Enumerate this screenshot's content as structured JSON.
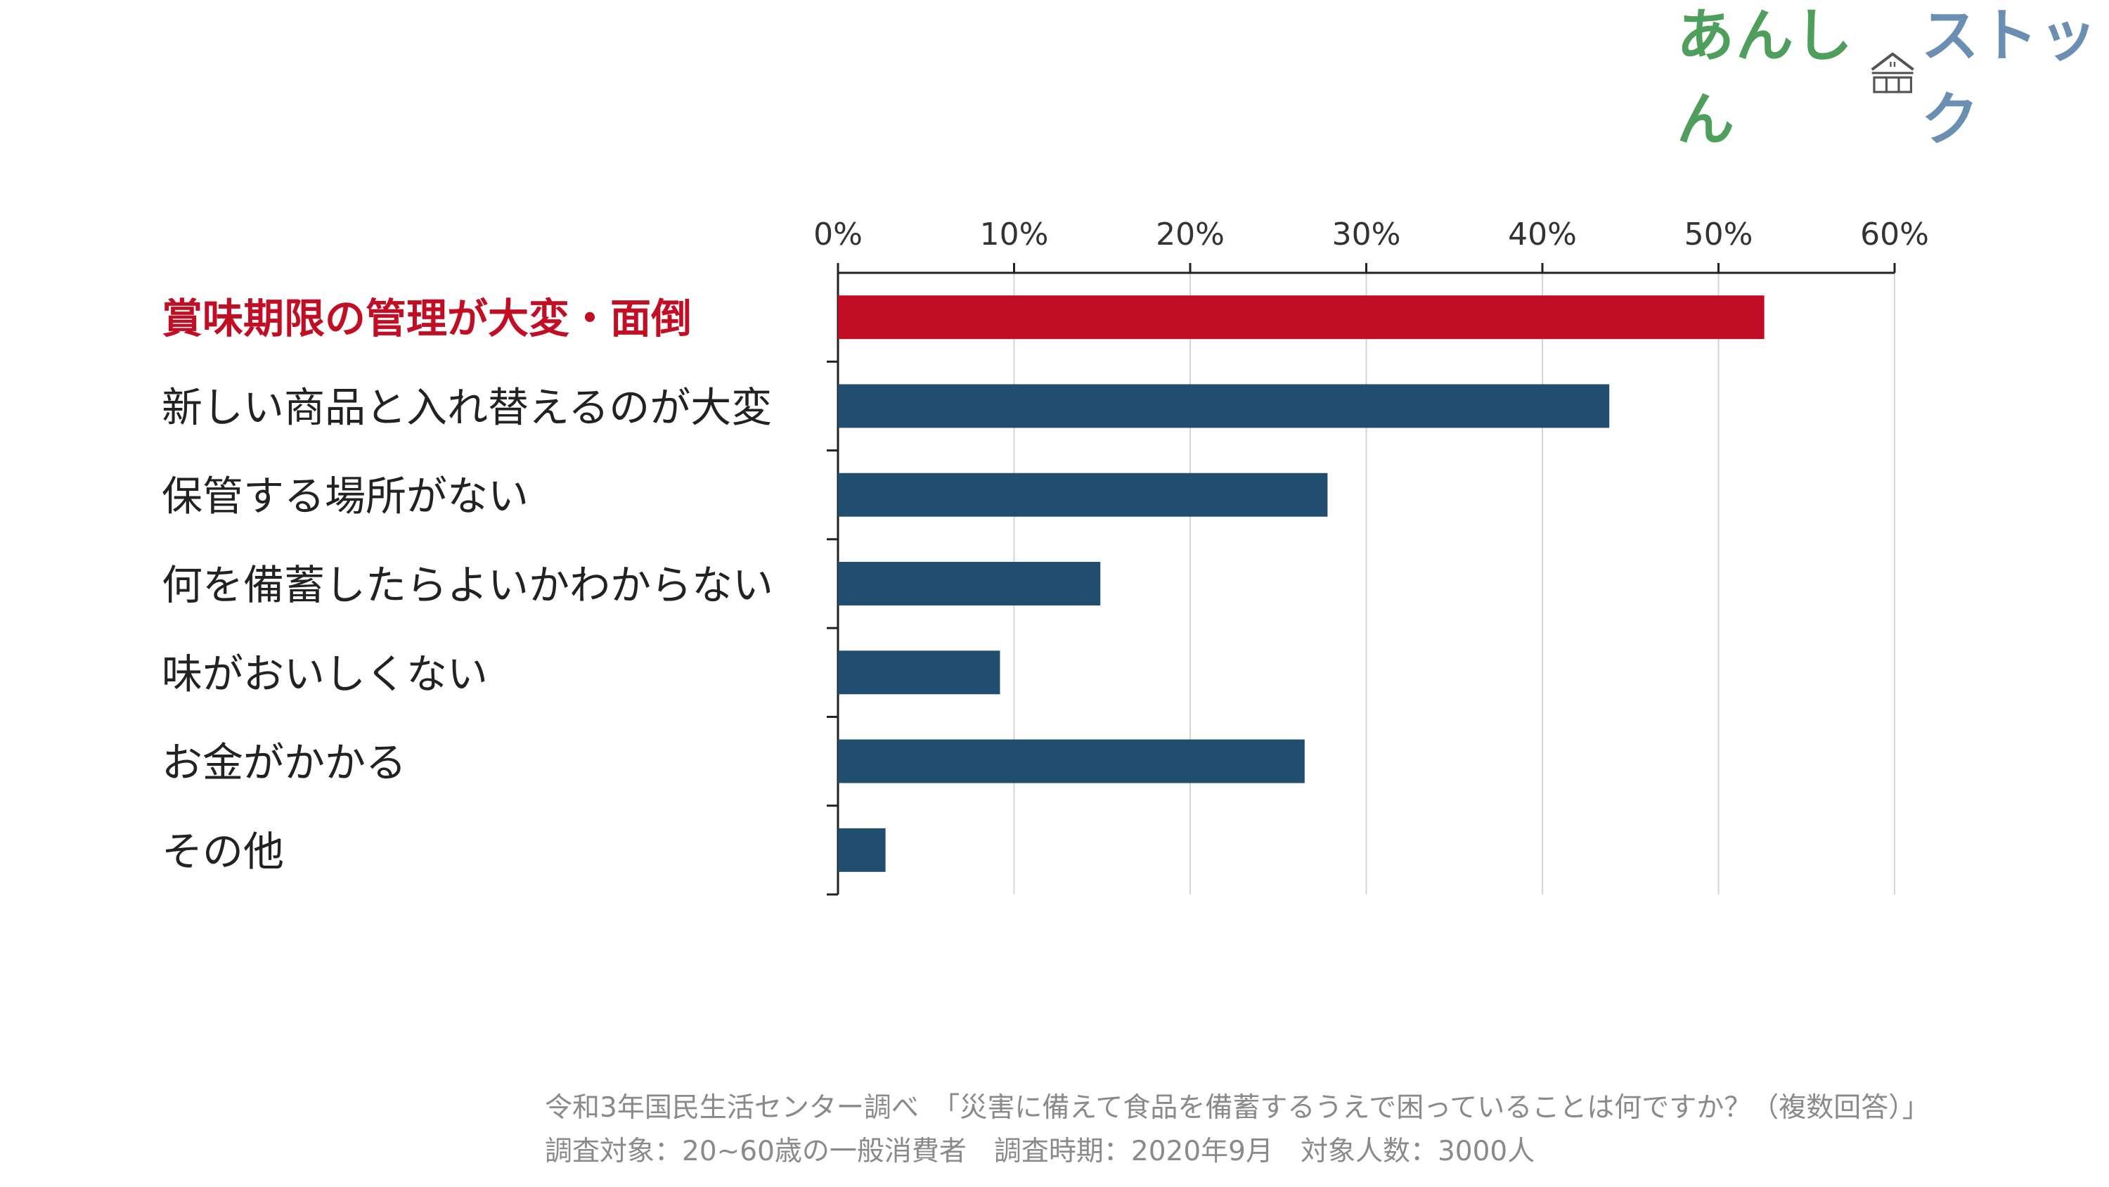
{
  "logo": {
    "text_left": "あんしん",
    "text_right": "ストック",
    "icon": "house-icon",
    "color_left": "#4e9e5c",
    "color_right": "#6b8fb3"
  },
  "chart_data": {
    "type": "bar",
    "orientation": "horizontal",
    "categories": [
      "賞味期限の管理が大変・面倒",
      "新しい商品と入れ替えるのが大変",
      "保管する場所がない",
      "何を備蓄したらよいかわからない",
      "味がおいしくない",
      "お金がかかる",
      "その他"
    ],
    "values": [
      52.6,
      43.8,
      27.8,
      14.9,
      9.2,
      26.5,
      2.7
    ],
    "highlight_index": 0,
    "xlim": [
      0,
      60
    ],
    "x_ticks": [
      "0%",
      "10%",
      "20%",
      "30%",
      "40%",
      "50%",
      "60%"
    ],
    "x_axis_position": "top",
    "grid": true,
    "colors": {
      "highlight": "#c20e25",
      "bar": "#214d6e",
      "grid": "#d4d4d4",
      "axis": "#222222"
    }
  },
  "source": {
    "line1": "令和3年国民生活センター調べ　「災害に備えて食品を備蓄するうえで困っていることは何ですか？（複数回答）」",
    "line2": "調査対象：20~60歳の一般消費者　調査時期：2020年9月　対象人数：3000人"
  }
}
